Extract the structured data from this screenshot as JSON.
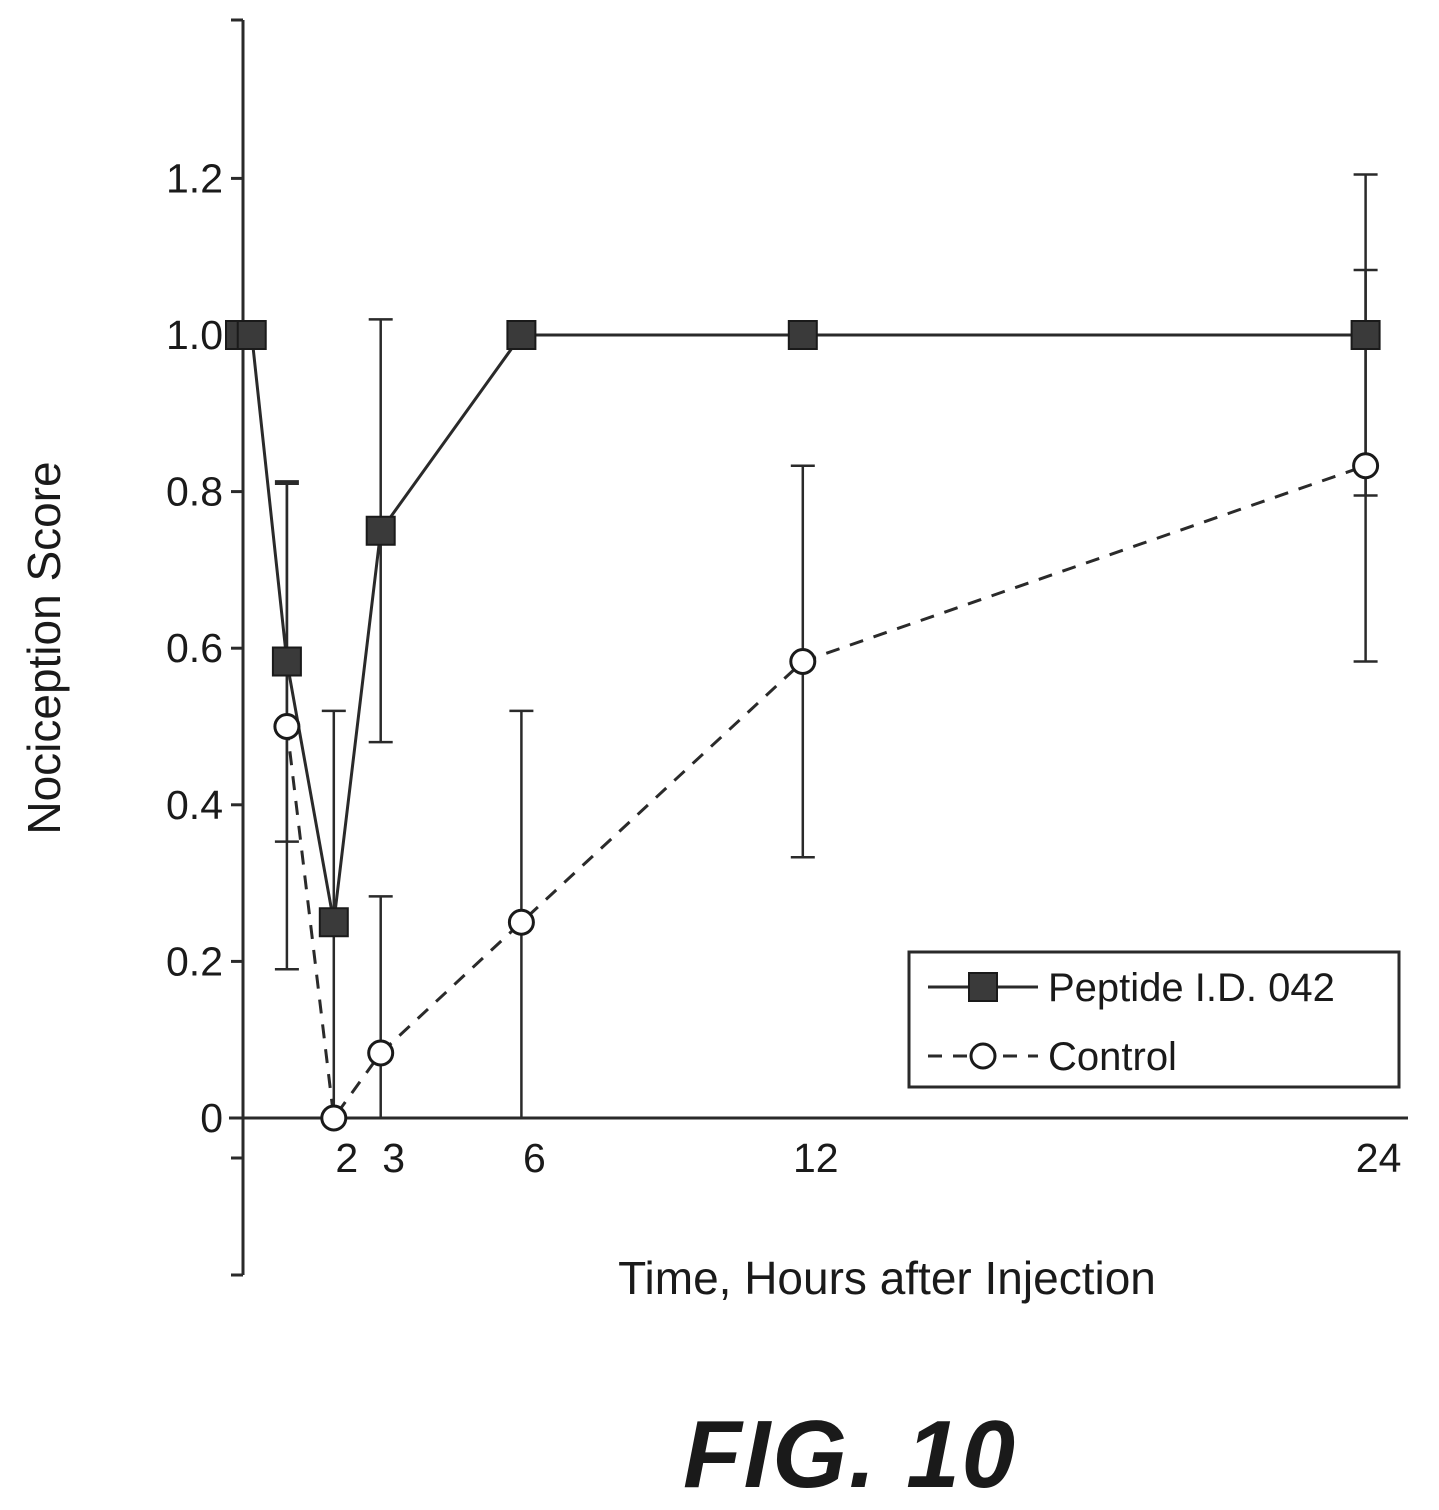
{
  "chart_data": {
    "type": "line",
    "title": "",
    "xlabel": "Time, Hours after Injection",
    "ylabel": "Nociception Score",
    "xlim": [
      0,
      24.5
    ],
    "ylim": [
      -0.2,
      1.4
    ],
    "x_tick_labels": [
      "2",
      "3",
      "6",
      "12",
      "24"
    ],
    "y_tick_labels": [
      "0",
      "0.2",
      "0.4",
      "0.6",
      "0.8",
      "1.0",
      "1.2"
    ],
    "legend_position": "bottom-right",
    "series": [
      {
        "name": "Peptide I.D. 042",
        "marker": "filled-square",
        "line": "solid",
        "color": "#333333",
        "x": [
          0,
          0.25,
          1,
          2,
          3,
          6,
          12,
          24
        ],
        "y": [
          1.0,
          1.0,
          0.583,
          0.25,
          0.75,
          1.0,
          1.0,
          1.0
        ],
        "error": [
          null,
          null,
          0.23,
          0.27,
          0.27,
          null,
          null,
          0.205
        ]
      },
      {
        "name": "Control",
        "marker": "open-circle",
        "line": "dashed",
        "color": "#333333",
        "x": [
          1,
          2,
          3,
          6,
          12,
          24
        ],
        "y": [
          0.5,
          0.0,
          0.083,
          0.25,
          0.583,
          0.833
        ],
        "error": [
          0.31,
          null,
          0.2,
          0.27,
          0.25,
          0.25
        ]
      }
    ]
  },
  "figure": {
    "caption": "FIG. 10"
  }
}
